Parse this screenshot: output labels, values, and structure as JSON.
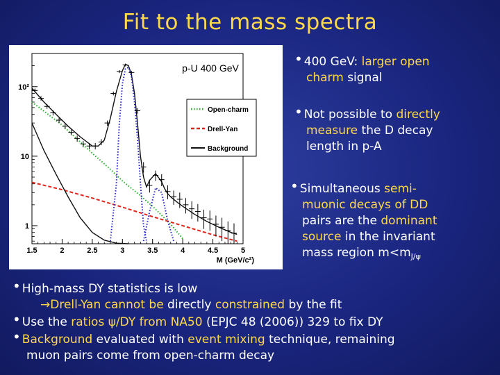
{
  "slide": {
    "title": "Fit to the mass spectra",
    "right_bullets": {
      "b1": {
        "p1": "400 GeV: ",
        "h1": "larger open",
        "h2": "charm",
        "p2": " signal"
      },
      "b2": {
        "p1": "Not possible to ",
        "h1": "directly",
        "h2": "measure",
        "p2": " the D decay",
        "p3": "length in p-A"
      },
      "b3": {
        "p1": "Simultaneous ",
        "h1": "semi-",
        "h2": "muonic decays of DD",
        "p2": "pairs are the ",
        "h3": "dominant",
        "h4": "source",
        "p3": " in the invariant",
        "p4": "mass region m<m",
        "sub": "J/ψ"
      }
    },
    "bottom_bullets": {
      "b1": "High-mass DY statistics is low",
      "b1b": {
        "arrow": "→",
        "h1": "Drell-Yan cannot be",
        "p1": " directly ",
        "h2": "constrained",
        "p2": " by the fit"
      },
      "b2": {
        "p1": "Use the ",
        "h1": "ratios ψ/DY from NA50",
        "p2": " (EPJC 48 (2006)) 329 to fix DY"
      },
      "b3": {
        "h1": "Background",
        "p1": " evaluated with ",
        "h2": "event mixing",
        "p2": " technique, remaining",
        "p3": "muon pairs come from open-charm decay"
      }
    }
  },
  "chart_data": {
    "type": "line",
    "title": "p-U 400 GeV",
    "xlabel": "M (GeV/c²)",
    "xlim": [
      1.5,
      5.0
    ],
    "ylim": [
      0.55,
      300
    ],
    "yscale": "log",
    "x_ticks": [
      1.5,
      2,
      2.5,
      3,
      3.5,
      4,
      4.5,
      5
    ],
    "x_tick_labels": [
      "1.5",
      "2",
      "2.5",
      "3",
      "3.5",
      "4",
      "4.5",
      "5"
    ],
    "y_ticks": [
      1,
      10,
      100
    ],
    "y_tick_labels": [
      "1",
      "10",
      "10²"
    ],
    "legend": {
      "position": "top-right",
      "entries": [
        "Open-charm",
        "Drell-Yan",
        "Background"
      ]
    },
    "series": [
      {
        "name": "Open-charm",
        "style": "dotted",
        "color": "#27b02a",
        "x": [
          1.5,
          1.8,
          2.0,
          2.3,
          2.5,
          2.8,
          3.0,
          3.3,
          3.5,
          3.8,
          4.0
        ],
        "y": [
          60,
          38,
          28,
          16,
          11,
          6.5,
          4.4,
          2.7,
          1.9,
          1.05,
          0.65
        ]
      },
      {
        "name": "Drell-Yan",
        "style": "dashed",
        "color": "#e2231a",
        "x": [
          1.5,
          2.0,
          2.5,
          3.0,
          3.5,
          4.0,
          4.5,
          4.9
        ],
        "y": [
          4.2,
          3.3,
          2.5,
          1.85,
          1.35,
          1.0,
          0.74,
          0.6
        ]
      },
      {
        "name": "Background",
        "style": "solid",
        "color": "#111111",
        "x": [
          1.5,
          1.7,
          1.9,
          2.1,
          2.3,
          2.5,
          2.7,
          2.9,
          3.1
        ],
        "y": [
          30,
          12,
          5.5,
          2.6,
          1.3,
          0.8,
          0.62,
          0.56,
          0.55
        ]
      },
      {
        "name": "Fit",
        "style": "solid",
        "color": "#111111",
        "x": [
          1.5,
          1.7,
          1.9,
          2.1,
          2.3,
          2.5,
          2.6,
          2.7,
          2.8,
          2.9,
          3.0,
          3.05,
          3.1,
          3.15,
          3.2,
          3.25,
          3.3,
          3.35,
          3.4,
          3.45,
          3.55,
          3.65,
          3.7,
          3.75,
          3.8,
          3.9,
          4.0,
          4.2,
          4.4,
          4.6,
          4.8,
          4.9
        ],
        "y": [
          95,
          60,
          40,
          27,
          19,
          14,
          14,
          17,
          35,
          85,
          170,
          210,
          200,
          150,
          80,
          30,
          10,
          5,
          3.6,
          4.5,
          5.6,
          4.3,
          3.4,
          2.9,
          2.6,
          2.2,
          1.9,
          1.45,
          1.15,
          0.95,
          0.8,
          0.75
        ]
      },
      {
        "name": "J/psi",
        "style": "dotted",
        "color": "#2222cc",
        "x": [
          2.8,
          2.9,
          2.95,
          3.0,
          3.05,
          3.1,
          3.15,
          3.2,
          3.25,
          3.3,
          3.35,
          3.4
        ],
        "y": [
          0.6,
          4,
          30,
          110,
          180,
          190,
          140,
          60,
          18,
          4,
          1,
          0.6
        ]
      },
      {
        "name": "psi prime",
        "style": "dotted",
        "color": "#2222cc",
        "x": [
          3.35,
          3.45,
          3.55,
          3.65,
          3.75,
          3.85
        ],
        "y": [
          0.6,
          1.6,
          3.5,
          3.0,
          1.2,
          0.6
        ]
      }
    ],
    "points": {
      "x": [
        1.55,
        1.65,
        1.75,
        1.85,
        1.95,
        2.05,
        2.15,
        2.25,
        2.35,
        2.45,
        2.55,
        2.65,
        2.75,
        2.85,
        2.95,
        3.05,
        3.15,
        3.25,
        3.35,
        3.45,
        3.55,
        3.65,
        3.75,
        3.85,
        3.95,
        4.05,
        4.15,
        4.25,
        4.35,
        4.45,
        4.55,
        4.65,
        4.75,
        4.85
      ],
      "y": [
        88,
        68,
        52,
        42,
        33,
        27,
        22,
        18,
        15,
        14,
        14,
        16,
        30,
        80,
        165,
        205,
        160,
        45,
        7,
        3.8,
        5.3,
        4.6,
        3.1,
        2.6,
        2.4,
        2.0,
        1.75,
        1.6,
        1.3,
        1.25,
        1.05,
        0.95,
        0.85,
        0.78
      ],
      "yerr": [
        6,
        5,
        4,
        3.5,
        3,
        2.5,
        2,
        1.8,
        1.6,
        1.5,
        1.5,
        1.6,
        2.5,
        5,
        8,
        9,
        8,
        4,
        1.2,
        0.8,
        0.9,
        0.9,
        0.7,
        0.6,
        0.6,
        0.5,
        0.5,
        0.45,
        0.4,
        0.4,
        0.35,
        0.35,
        0.3,
        0.3
      ]
    }
  }
}
